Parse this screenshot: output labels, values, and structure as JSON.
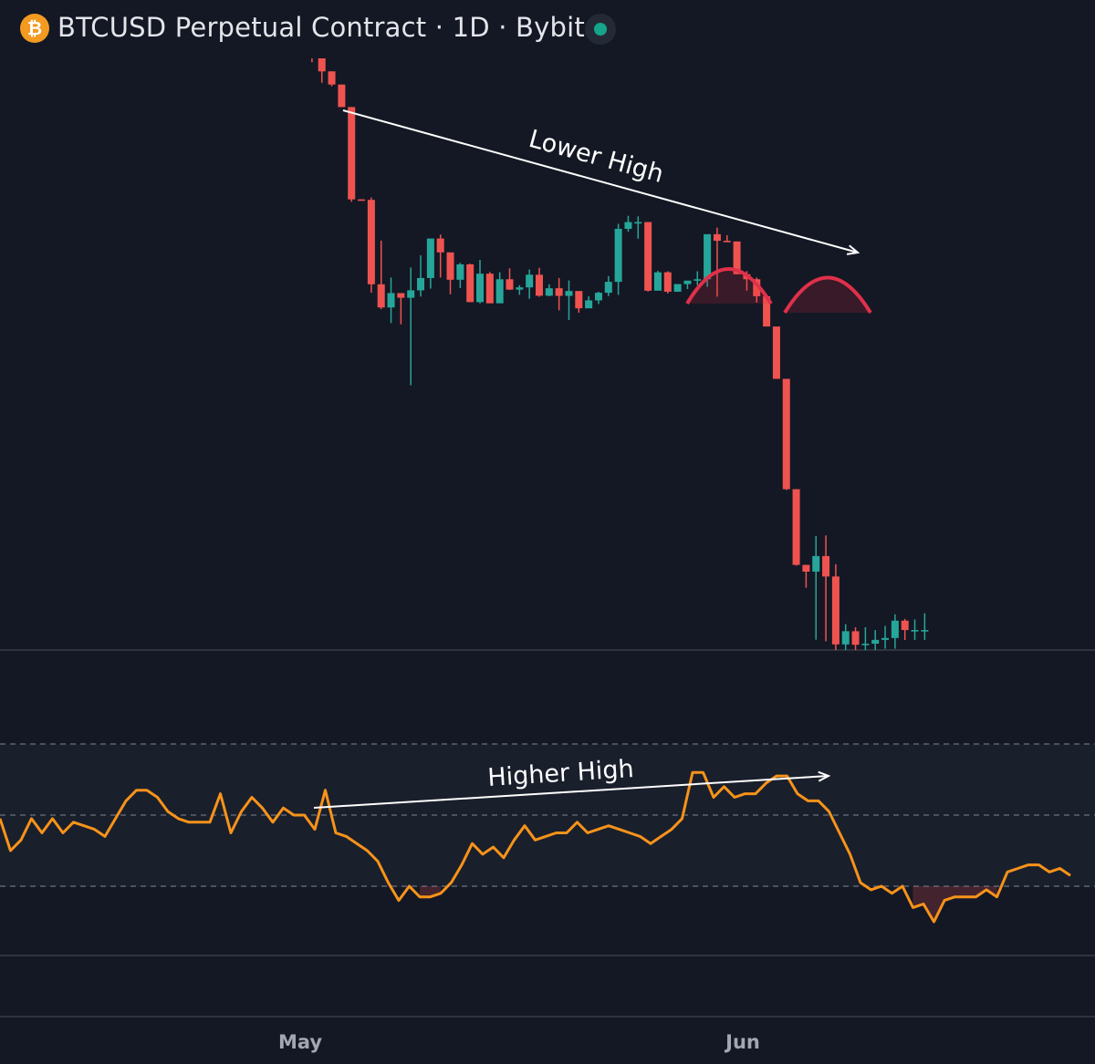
{
  "header": {
    "title": "BTCUSD Perpetual Contract · 1D · Bybit",
    "coin_icon": "bitcoin-icon",
    "coin_glyph": "₿",
    "status_icon": "market-status-dot-icon"
  },
  "colors": {
    "background": "#141824",
    "up": "#26a69a",
    "down": "#ef5350",
    "rsi_line": "#f7931a",
    "annotation": "#ffffff",
    "arc": "#e0304a"
  },
  "chart_data": [
    {
      "type": "candlestick",
      "title": "BTCUSD Perpetual Contract · 1D · Bybit",
      "interval": "1D",
      "x_tick_labels": [
        "May",
        "Jun"
      ],
      "grid": false,
      "candles": [
        [
          100.0,
          87.9,
          101.0,
          87.5
        ],
        [
          95.7,
          90.5,
          96.4,
          89.7
        ],
        [
          90.5,
          93.5,
          96.3,
          89.2
        ],
        [
          93.5,
          99.6,
          100.0,
          89.4
        ],
        [
          99.6,
          96.6,
          99.6,
          93.8
        ],
        [
          96.6,
          97.6,
          102.2,
          93.9
        ],
        [
          97.6,
          92.9,
          98.4,
          92.5
        ],
        [
          92.9,
          93.0,
          93.9,
          91.8
        ],
        [
          93.0,
          87.7,
          93.0,
          87.2
        ],
        [
          87.7,
          97.0,
          98.6,
          82.3
        ],
        [
          97.0,
          102.8,
          103.1,
          95.6
        ],
        [
          102.8,
          103.4,
          104.8,
          101.5
        ],
        [
          103.4,
          101.8,
          106.2,
          100.7
        ],
        [
          101.8,
          93.6,
          112.0,
          90.9
        ],
        [
          93.6,
          87.7,
          95.2,
          83.5
        ],
        [
          87.7,
          84.9,
          86.0,
          83.9
        ],
        [
          84.9,
          84.1,
          84.9,
          84.1
        ],
        [
          84.1,
          84.6,
          86.3,
          79.6
        ],
        [
          84.6,
          94.5,
          96.9,
          83.5
        ],
        [
          94.5,
          74.8,
          95.2,
          72.4
        ],
        [
          74.8,
          83.1,
          86.3,
          71.7
        ],
        [
          83.1,
          79.1,
          88.2,
          78.4
        ],
        [
          79.1,
          68.9,
          80.0,
          68.2
        ],
        [
          68.9,
          73.2,
          76.9,
          68.5
        ],
        [
          73.2,
          74.1,
          75.2,
          73.0
        ],
        [
          74.1,
          72.1,
          73.3,
          69.6
        ],
        [
          72.1,
          73.1,
          76.6,
          69.8
        ],
        [
          73.1,
          79.8,
          80.2,
          71.6
        ],
        [
          79.8,
          65.7,
          80.0,
          63.0
        ],
        [
          65.7,
          80.7,
          87.0,
          64.7
        ],
        [
          80.7,
          46.8,
          81.3,
          42.0
        ],
        [
          46.8,
          36.7,
          47.1,
          30.1
        ],
        [
          36.7,
          29.1,
          36.7,
          28.1
        ],
        [
          29.1,
          16.1,
          29.1,
          16.1
        ],
        [
          16.1,
          -37.2,
          16.1,
          -38.6
        ],
        [
          -37.2,
          -37.5,
          -37.1,
          -37.9
        ],
        [
          -37.5,
          -86.2,
          -36.1,
          -91.1
        ],
        [
          -86.2,
          -99.6,
          -61.0,
          -100.5
        ],
        [
          -99.6,
          -91.3,
          -82.3,
          -108.6
        ],
        [
          -91.3,
          -94.0,
          -94.0,
          -109.3
        ],
        [
          -94.0,
          -89.7,
          -76.5,
          -144.5
        ],
        [
          -89.7,
          -82.6,
          -69.5,
          -93.3
        ],
        [
          -82.6,
          -59.8,
          -65.6,
          -88.7
        ],
        [
          -59.8,
          -67.8,
          -57.5,
          -82.3
        ],
        [
          -67.8,
          -83.6,
          -68.2,
          -92.0
        ],
        [
          -83.6,
          -74.7,
          -73.9,
          -88.4
        ],
        [
          -74.7,
          -96.5,
          -74.3,
          -96.5
        ],
        [
          -96.5,
          -80.1,
          -72.1,
          -97.2
        ],
        [
          -80.1,
          -97.2,
          -79.1,
          -96.6
        ],
        [
          -97.2,
          -83.3,
          -79.3,
          -96.4
        ],
        [
          -83.3,
          -89.3,
          -77.0,
          -89.5
        ],
        [
          -89.3,
          -88.0,
          -86.7,
          -92.3
        ],
        [
          -88.0,
          -80.7,
          -77.7,
          -94.6
        ],
        [
          -80.7,
          -92.8,
          -76.7,
          -93.4
        ],
        [
          -92.8,
          -88.5,
          -86.2,
          -93.1
        ],
        [
          -88.5,
          -92.9,
          -82.6,
          -101.2
        ],
        [
          -92.9,
          -90.1,
          -84.0,
          -106.8
        ],
        [
          -90.1,
          -100.1,
          -91.3,
          -102.6
        ],
        [
          -100.1,
          -95.5,
          -93.1,
          -99.3
        ],
        [
          -95.5,
          -91.1,
          -90.5,
          -97.6
        ],
        [
          -91.1,
          -84.8,
          -81.5,
          -93.0
        ],
        [
          -84.8,
          -54.2,
          -51.3,
          -92.3
        ],
        [
          -54.2,
          -50.3,
          -46.7,
          -55.9
        ],
        [
          -50.3,
          -50.3,
          -47.0,
          -59.9
        ],
        [
          -50.3,
          -89.9,
          -56.8,
          -90.4
        ],
        [
          -89.9,
          -79.3,
          -78.5,
          -89.6
        ],
        [
          -79.3,
          -90.5,
          -78.7,
          -91.5
        ],
        [
          -90.5,
          -86.1,
          -86.4,
          -90.6
        ],
        [
          -86.1,
          -84.1,
          -84.6,
          -89.0
        ],
        [
          -84.1,
          -83.3,
          -78.7,
          -86.7
        ],
        [
          -83.3,
          -57.3,
          -57.8,
          -87.7
        ],
        [
          -57.3,
          -61.1,
          -53.5,
          -93.4
        ],
        [
          -61.1,
          -61.5,
          -57.9,
          -61.4
        ],
        [
          -61.5,
          -80.4,
          -61.5,
          -80.4
        ],
        [
          -80.4,
          -83.3,
          -78.6,
          -89.9
        ],
        [
          -83.3,
          -93.1,
          -82.3,
          -96.7
        ],
        [
          -93.1,
          -110.6,
          -93.1,
          -108.7
        ],
        [
          -110.6,
          -140.8,
          -111.5,
          -139.9
        ],
        [
          -140.8,
          -204.5,
          -142.6,
          -205.0
        ],
        [
          -204.5,
          -248.2,
          -204.6,
          -248.6
        ],
        [
          -248.2,
          -252.1,
          -248.3,
          -261.4
        ],
        [
          -252.1,
          -243.1,
          -231.5,
          -291.4
        ],
        [
          -243.1,
          -254.9,
          -231.2,
          -292.3
        ],
        [
          -254.9,
          -294.1,
          -247.8,
          -297.7
        ],
        [
          -294.1,
          -286.5,
          -282.4,
          -300.2
        ],
        [
          -286.5,
          -294.3,
          -284.2,
          -302.1
        ],
        [
          -294.3,
          -293.7,
          -284.2,
          -302.3
        ],
        [
          -293.7,
          -291.5,
          -285.8,
          -299.7
        ],
        [
          -291.5,
          -290.4,
          -283.4,
          -296.6
        ],
        [
          -290.4,
          -280.4,
          -276.7,
          -296.6
        ],
        [
          -280.4,
          -285.8,
          -279.4,
          -291.6
        ],
        [
          -285.8,
          -285.8,
          -279.7,
          -291.5
        ],
        [
          -285.8,
          -285.8,
          -276.1,
          -291.5
        ]
      ]
    },
    {
      "type": "line",
      "name": "RSI",
      "levels": [
        70,
        50,
        30
      ],
      "ylim": [
        0,
        100
      ],
      "annotation_arrow": "Higher High",
      "values": [
        49,
        40,
        43,
        49,
        45,
        49,
        45,
        48,
        47,
        46,
        44,
        49,
        54,
        57,
        57,
        55,
        51,
        49,
        48,
        48,
        48,
        56,
        45,
        51,
        55,
        52,
        48,
        52,
        50,
        50,
        46,
        57,
        45,
        44,
        42,
        40,
        37,
        31,
        26,
        30,
        27,
        27,
        28,
        31,
        36,
        42,
        39,
        41,
        38,
        43,
        47,
        43,
        44,
        45,
        45,
        48,
        45,
        46,
        47,
        46,
        45,
        44,
        42,
        44,
        46,
        49,
        62,
        62,
        55,
        58,
        55,
        56,
        56,
        59,
        61,
        61,
        56,
        54,
        54,
        51,
        45,
        39,
        31,
        29,
        30,
        28,
        30,
        24,
        25,
        20,
        26,
        27,
        27,
        27,
        29,
        27,
        34,
        35,
        36,
        36,
        34,
        35,
        33
      ]
    }
  ],
  "annotations": {
    "lower_high": "Lower High",
    "higher_high": "Higher High"
  },
  "x_axis": {
    "labels": [
      "May",
      "Jun"
    ]
  }
}
